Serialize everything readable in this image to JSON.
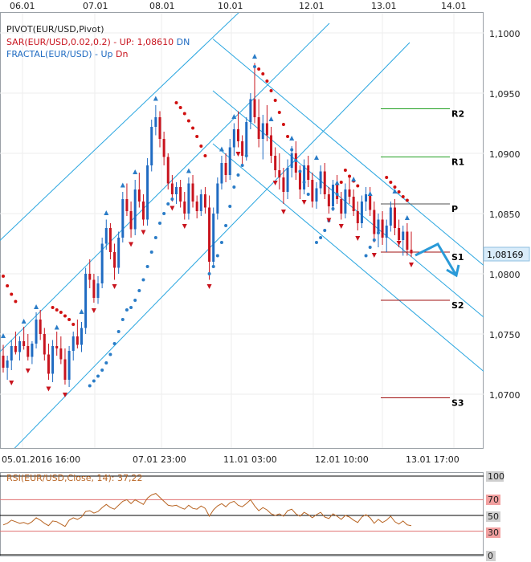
{
  "top_axis": {
    "date_labels": [
      "06.01",
      "07.01",
      "08.01",
      "10.01",
      "12.01",
      "13.01",
      "14.01"
    ]
  },
  "indicators": {
    "pivot": "PIVOT(EUR/USD,Pivot)",
    "sar_prefix": "SAR(EUR/USD,0.02,0.2) -",
    "sar_up": "UP: 1,08610",
    "sar_dn": "DN",
    "fractal_prefix": "FRACTAL(EUR/USD) -",
    "fractal_up": "Up",
    "fractal_dn": "Dn"
  },
  "price_scale": {
    "ticks": [
      "1,1000",
      "1,0950",
      "1,0900",
      "1,0850",
      "1,0800",
      "1,0750",
      "1,0700"
    ],
    "current_price": "1,08169"
  },
  "pivot_levels": [
    {
      "name": "R2",
      "value": 1.0937
    },
    {
      "name": "R1",
      "value": 1.0897
    },
    {
      "name": "P",
      "value": 1.0858
    },
    {
      "name": "S1",
      "value": 1.0818
    },
    {
      "name": "S2",
      "value": 1.0778
    },
    {
      "name": "S3",
      "value": 1.0697
    }
  ],
  "bottom_axis": {
    "labels": [
      "05.01.2016 16:00",
      "07.01 23:00",
      "11.01 03:00",
      "12.01 10:00",
      "13.01 17:00"
    ]
  },
  "rsi": {
    "label": "RSI(EUR/USD,Close, 14): 37,22",
    "levels": [
      "100",
      "70",
      "50",
      "30",
      "0"
    ]
  },
  "colors": {
    "bull": "#1f6bc2",
    "bear": "#c8141e",
    "sar": "#d01010",
    "channel": "#2aa6e0",
    "fractal": "#2a7cc7",
    "pivot_r": "#22a022",
    "pivot_p": "#505050",
    "pivot_s": "#a01010",
    "rsi_line": "#b86422",
    "rsi_level": "#e07070"
  },
  "chart_data": {
    "type": "candlestick",
    "symbol": "EUR/USD",
    "ylim": [
      1.066,
      1.1015
    ],
    "candles": [
      [
        1.0732,
        1.0741,
        1.0718,
        1.0722
      ],
      [
        1.0722,
        1.0732,
        1.0712,
        1.0728
      ],
      [
        1.0728,
        1.0745,
        1.072,
        1.074
      ],
      [
        1.074,
        1.0752,
        1.0733,
        1.0735
      ],
      [
        1.0735,
        1.0748,
        1.0728,
        1.0744
      ],
      [
        1.0744,
        1.0756,
        1.0737,
        1.074
      ],
      [
        1.074,
        1.075,
        1.0728,
        1.0731
      ],
      [
        1.0731,
        1.0744,
        1.0725,
        1.0742
      ],
      [
        1.0742,
        1.0768,
        1.0738,
        1.0762
      ],
      [
        1.0762,
        1.077,
        1.0745,
        1.075
      ],
      [
        1.075,
        1.0755,
        1.0728,
        1.0733
      ],
      [
        1.0733,
        1.0742,
        1.0712,
        1.0717
      ],
      [
        1.0717,
        1.0745,
        1.071,
        1.074
      ],
      [
        1.074,
        1.0752,
        1.0732,
        1.0738
      ],
      [
        1.0738,
        1.0748,
        1.0725,
        1.0729
      ],
      [
        1.0729,
        1.0738,
        1.0708,
        1.0712
      ],
      [
        1.0712,
        1.074,
        1.0706,
        1.0736
      ],
      [
        1.0736,
        1.0752,
        1.0728,
        1.0748
      ],
      [
        1.0748,
        1.0762,
        1.0738,
        1.0741
      ],
      [
        1.0741,
        1.076,
        1.0735,
        1.0755
      ],
      [
        1.0755,
        1.0805,
        1.075,
        1.08
      ],
      [
        1.08,
        1.0812,
        1.0788,
        1.0795
      ],
      [
        1.0795,
        1.08,
        1.0776,
        1.078
      ],
      [
        1.078,
        1.0798,
        1.0775,
        1.0792
      ],
      [
        1.0792,
        1.083,
        1.0788,
        1.0825
      ],
      [
        1.0825,
        1.0845,
        1.082,
        1.0838
      ],
      [
        1.0838,
        1.0842,
        1.0812,
        1.0818
      ],
      [
        1.0818,
        1.0825,
        1.0795,
        1.0805
      ],
      [
        1.0805,
        1.0835,
        1.08,
        1.083
      ],
      [
        1.083,
        1.0868,
        1.0826,
        1.0862
      ],
      [
        1.0862,
        1.0875,
        1.0848,
        1.0852
      ],
      [
        1.0852,
        1.086,
        1.083,
        1.0837
      ],
      [
        1.0837,
        1.0878,
        1.0832,
        1.087
      ],
      [
        1.087,
        1.0884,
        1.0855,
        1.086
      ],
      [
        1.086,
        1.0866,
        1.084,
        1.0845
      ],
      [
        1.0845,
        1.0896,
        1.084,
        1.089
      ],
      [
        1.089,
        1.0928,
        1.0885,
        1.0922
      ],
      [
        1.0922,
        1.094,
        1.0915,
        1.093
      ],
      [
        1.093,
        1.0935,
        1.0905,
        1.0912
      ],
      [
        1.0912,
        1.0918,
        1.089,
        1.0897
      ],
      [
        1.0897,
        1.09,
        1.087,
        1.0875
      ],
      [
        1.0875,
        1.0882,
        1.086,
        1.0866
      ],
      [
        1.0866,
        1.0876,
        1.0858,
        1.0872
      ],
      [
        1.0872,
        1.0878,
        1.0855,
        1.086
      ],
      [
        1.086,
        1.0868,
        1.0845,
        1.085
      ],
      [
        1.085,
        1.088,
        1.0845,
        1.0875
      ],
      [
        1.0875,
        1.0882,
        1.0855,
        1.086
      ],
      [
        1.086,
        1.0865,
        1.0846,
        1.0852
      ],
      [
        1.0852,
        1.087,
        1.0848,
        1.0866
      ],
      [
        1.0866,
        1.0872,
        1.085,
        1.0855
      ],
      [
        1.0855,
        1.0865,
        1.0795,
        1.081
      ],
      [
        1.081,
        1.0855,
        1.0806,
        1.085
      ],
      [
        1.085,
        1.088,
        1.0845,
        1.0875
      ],
      [
        1.0875,
        1.0898,
        1.087,
        1.0892
      ],
      [
        1.0892,
        1.09,
        1.0876,
        1.0882
      ],
      [
        1.0882,
        1.0912,
        1.0878,
        1.0905
      ],
      [
        1.0905,
        1.0925,
        1.0898,
        1.092
      ],
      [
        1.092,
        1.0935,
        1.0905,
        1.091
      ],
      [
        1.091,
        1.0915,
        1.089,
        1.0898
      ],
      [
        1.0898,
        1.093,
        1.0894,
        1.0926
      ],
      [
        1.0926,
        1.095,
        1.092,
        1.0945
      ],
      [
        1.0945,
        1.0975,
        1.0925,
        1.093
      ],
      [
        1.093,
        1.0945,
        1.0905,
        1.0912
      ],
      [
        1.0912,
        1.0932,
        1.0895,
        1.0925
      ],
      [
        1.0925,
        1.094,
        1.091,
        1.0915
      ],
      [
        1.0915,
        1.0922,
        1.0892,
        1.0898
      ],
      [
        1.0898,
        1.0905,
        1.088,
        1.0886
      ],
      [
        1.0886,
        1.09,
        1.087,
        1.088
      ],
      [
        1.088,
        1.0888,
        1.0858,
        1.0868
      ],
      [
        1.0868,
        1.0895,
        1.0862,
        1.0888
      ],
      [
        1.0888,
        1.0906,
        1.088,
        1.09
      ],
      [
        1.09,
        1.091,
        1.0878,
        1.0884
      ],
      [
        1.0884,
        1.089,
        1.0862,
        1.087
      ],
      [
        1.087,
        1.0895,
        1.0866,
        1.089
      ],
      [
        1.089,
        1.0898,
        1.0872,
        1.0878
      ],
      [
        1.0878,
        1.0884,
        1.0855,
        1.086
      ],
      [
        1.086,
        1.0876,
        1.0854,
        1.0871
      ],
      [
        1.0871,
        1.089,
        1.0866,
        1.0885
      ],
      [
        1.0885,
        1.0892,
        1.0862,
        1.0866
      ],
      [
        1.0866,
        1.0872,
        1.085,
        1.0856
      ],
      [
        1.0856,
        1.0878,
        1.0852,
        1.0874
      ],
      [
        1.0874,
        1.0882,
        1.0858,
        1.0862
      ],
      [
        1.0862,
        1.0868,
        1.0845,
        1.085
      ],
      [
        1.085,
        1.0875,
        1.0846,
        1.087
      ],
      [
        1.087,
        1.088,
        1.0858,
        1.0864
      ],
      [
        1.0864,
        1.087,
        1.0848,
        1.0852
      ],
      [
        1.0852,
        1.086,
        1.0836,
        1.0842
      ],
      [
        1.0842,
        1.0865,
        1.0838,
        1.086
      ],
      [
        1.086,
        1.0872,
        1.0852,
        1.0866
      ],
      [
        1.0866,
        1.0872,
        1.0848,
        1.0853
      ],
      [
        1.0853,
        1.086,
        1.0826,
        1.0833
      ],
      [
        1.0833,
        1.085,
        1.0822,
        1.0845
      ],
      [
        1.0845,
        1.0852,
        1.0824,
        1.083
      ],
      [
        1.083,
        1.0845,
        1.0818,
        1.084
      ],
      [
        1.084,
        1.086,
        1.0835,
        1.0855
      ],
      [
        1.0855,
        1.0862,
        1.0832,
        1.0838
      ],
      [
        1.0838,
        1.0845,
        1.0822,
        1.0828
      ],
      [
        1.0828,
        1.084,
        1.0815,
        1.0835
      ],
      [
        1.0835,
        1.0842,
        1.0815,
        1.082
      ],
      [
        1.082,
        1.0835,
        1.0814,
        1.0817
      ]
    ],
    "sar": [
      [
        0,
        1.0798
      ],
      [
        1,
        1.079
      ],
      [
        2,
        1.0783
      ],
      [
        3,
        1.0777
      ],
      [
        12,
        1.0772
      ],
      [
        13,
        1.077
      ],
      [
        14,
        1.0768
      ],
      [
        15,
        1.0765
      ],
      [
        16,
        1.0762
      ],
      [
        17,
        1.0758
      ],
      [
        21,
        1.0707
      ],
      [
        22,
        1.0711
      ],
      [
        23,
        1.0715
      ],
      [
        24,
        1.072
      ],
      [
        25,
        1.0726
      ],
      [
        26,
        1.0733
      ],
      [
        27,
        1.0742
      ],
      [
        28,
        1.0752
      ],
      [
        29,
        1.0762
      ],
      [
        30,
        1.077
      ],
      [
        31,
        1.0772
      ],
      [
        32,
        1.0778
      ],
      [
        33,
        1.0786
      ],
      [
        34,
        1.0795
      ],
      [
        35,
        1.0806
      ],
      [
        36,
        1.0818
      ],
      [
        37,
        1.083
      ],
      [
        38,
        1.0842
      ],
      [
        39,
        1.085
      ],
      [
        40,
        1.0858
      ],
      [
        41,
        1.0862
      ],
      [
        42,
        1.0942
      ],
      [
        43,
        1.0938
      ],
      [
        44,
        1.0933
      ],
      [
        45,
        1.0927
      ],
      [
        46,
        1.0921
      ],
      [
        47,
        1.0914
      ],
      [
        48,
        1.0906
      ],
      [
        49,
        1.0898
      ],
      [
        50,
        1.08
      ],
      [
        51,
        1.0806
      ],
      [
        52,
        1.0815
      ],
      [
        53,
        1.0826
      ],
      [
        54,
        1.084
      ],
      [
        55,
        1.0856
      ],
      [
        56,
        1.0872
      ],
      [
        57,
        1.0882
      ],
      [
        58,
        1.089
      ],
      [
        59,
        1.0898
      ],
      [
        61,
        1.0972
      ],
      [
        62,
        1.097
      ],
      [
        63,
        1.0966
      ],
      [
        64,
        1.096
      ],
      [
        65,
        1.0952
      ],
      [
        66,
        1.0944
      ],
      [
        67,
        1.0934
      ],
      [
        68,
        1.0924
      ],
      [
        69,
        1.0914
      ],
      [
        70,
        1.0903
      ],
      [
        71,
        1.0894
      ],
      [
        72,
        1.0885
      ],
      [
        73,
        1.0876
      ],
      [
        74,
        1.0866
      ],
      [
        76,
        1.0826
      ],
      [
        77,
        1.083
      ],
      [
        78,
        1.0836
      ],
      [
        79,
        1.0844
      ],
      [
        80,
        1.0854
      ],
      [
        81,
        1.0866
      ],
      [
        82,
        1.0876
      ],
      [
        83,
        1.0886
      ],
      [
        84,
        1.0881
      ],
      [
        85,
        1.0877
      ],
      [
        86,
        1.0873
      ],
      [
        88,
        1.0815
      ],
      [
        89,
        1.0822
      ],
      [
        90,
        1.0828
      ],
      [
        91,
        1.0834
      ],
      [
        93,
        1.088
      ],
      [
        94,
        1.0876
      ],
      [
        95,
        1.0872
      ],
      [
        96,
        1.0868
      ],
      [
        97,
        1.0864
      ],
      [
        98,
        1.0861
      ]
    ],
    "fractals_up": [
      [
        0,
        1.0748
      ],
      [
        5,
        1.076
      ],
      [
        8,
        1.0772
      ],
      [
        13,
        1.0755
      ],
      [
        19,
        1.0768
      ],
      [
        25,
        1.085
      ],
      [
        29,
        1.0873
      ],
      [
        32,
        1.0884
      ],
      [
        37,
        1.0945
      ],
      [
        45,
        1.0885
      ],
      [
        53,
        1.0903
      ],
      [
        56,
        1.093
      ],
      [
        61,
        1.098
      ],
      [
        65,
        1.0928
      ],
      [
        70,
        1.0912
      ],
      [
        76,
        1.0896
      ],
      [
        81,
        1.0875
      ],
      [
        85,
        1.0878
      ],
      [
        89,
        1.0866
      ],
      [
        95,
        1.0868
      ],
      [
        98,
        1.0846
      ]
    ],
    "fractals_dn": [
      [
        2,
        1.071
      ],
      [
        6,
        1.072
      ],
      [
        11,
        1.0705
      ],
      [
        15,
        1.07
      ],
      [
        22,
        1.077
      ],
      [
        27,
        1.079
      ],
      [
        31,
        1.0825
      ],
      [
        34,
        1.0835
      ],
      [
        41,
        1.0855
      ],
      [
        44,
        1.084
      ],
      [
        50,
        1.079
      ],
      [
        57,
        1.09
      ],
      [
        66,
        1.0876
      ],
      [
        68,
        1.0852
      ],
      [
        73,
        1.086
      ],
      [
        79,
        1.0845
      ],
      [
        82,
        1.084
      ],
      [
        86,
        1.083
      ],
      [
        90,
        1.0816
      ],
      [
        96,
        1.0826
      ],
      [
        99,
        1.0808
      ]
    ],
    "rsi": [
      38,
      40,
      44,
      42,
      40,
      41,
      39,
      42,
      47,
      44,
      40,
      37,
      43,
      42,
      39,
      36,
      44,
      47,
      45,
      48,
      55,
      56,
      53,
      55,
      60,
      64,
      60,
      58,
      63,
      68,
      70,
      65,
      70,
      67,
      64,
      72,
      76,
      78,
      73,
      68,
      63,
      62,
      63,
      60,
      58,
      63,
      59,
      58,
      62,
      59,
      49,
      57,
      62,
      65,
      61,
      66,
      68,
      63,
      61,
      65,
      70,
      62,
      56,
      60,
      57,
      52,
      50,
      52,
      49,
      56,
      58,
      52,
      49,
      54,
      51,
      47,
      51,
      54,
      48,
      46,
      52,
      49,
      45,
      50,
      48,
      44,
      41,
      48,
      51,
      47,
      40,
      45,
      41,
      44,
      49,
      42,
      39,
      43,
      38,
      37
    ]
  }
}
